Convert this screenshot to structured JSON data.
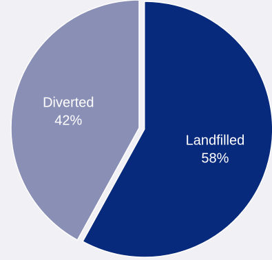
{
  "chart_data": {
    "type": "pie",
    "title": "",
    "slices": [
      {
        "label": "Landfilled",
        "percent_label": "58%",
        "value": 58,
        "color": "#082a7c",
        "exploded": true
      },
      {
        "label": "Diverted",
        "percent_label": "42%",
        "value": 42,
        "color": "#8a8fb6",
        "exploded": false
      }
    ],
    "start_angle_deg": 0,
    "direction": "clockwise",
    "legend": "none",
    "background": "#f0f0f5"
  }
}
